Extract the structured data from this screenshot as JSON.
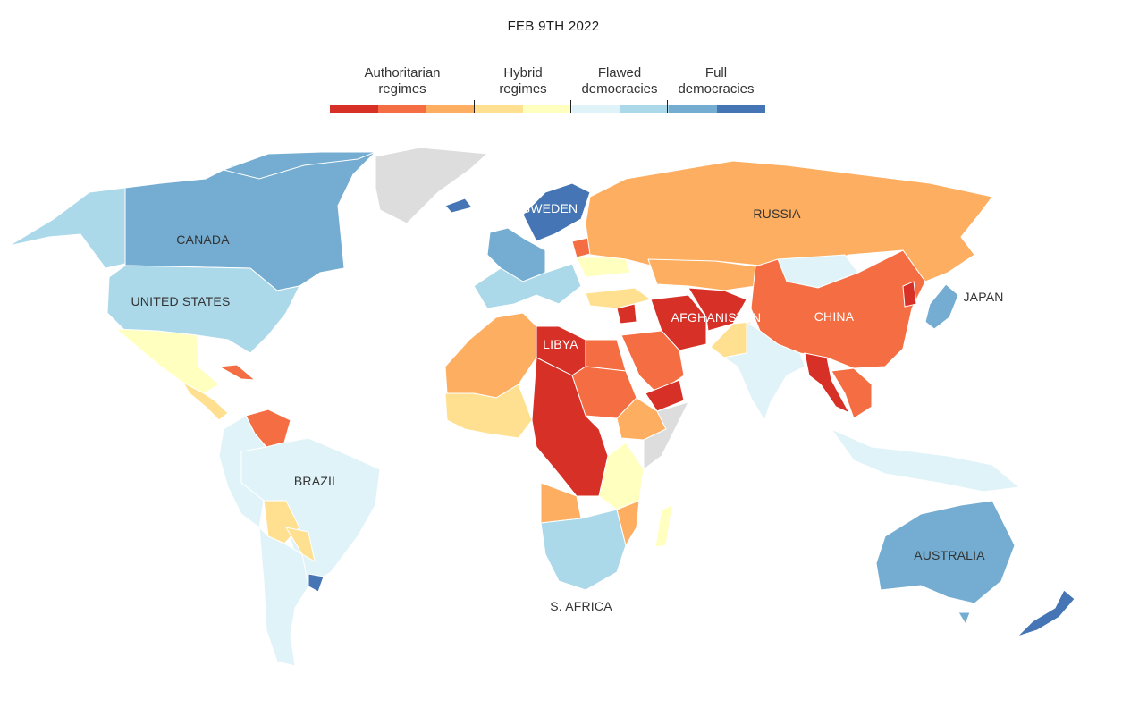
{
  "date": "FEB 9TH 2022",
  "legend": {
    "categories": [
      {
        "label_line1": "Authoritarian",
        "label_line2": "regimes"
      },
      {
        "label_line1": "Hybrid",
        "label_line2": "regimes"
      },
      {
        "label_line1": "Flawed",
        "label_line2": "democracies"
      },
      {
        "label_line1": "Full",
        "label_line2": "democracies"
      }
    ],
    "colors": [
      "#d73027",
      "#f46d43",
      "#fdae61",
      "#fee090",
      "#ffffbf",
      "#e0f3f8",
      "#abd9e9",
      "#74add1",
      "#4575b4"
    ]
  },
  "country_labels": {
    "canada": "CANADA",
    "united_states": "UNITED STATES",
    "brazil": "BRAZIL",
    "sweden": "SWEDEN",
    "russia": "RUSSIA",
    "libya": "LIBYA",
    "afghanistan": "AFGHANISTAN",
    "china": "CHINA",
    "japan": "JAPAN",
    "australia": "AUSTRALIA",
    "south_africa": "S. AFRICA"
  },
  "no_data_color": "#dddddd"
}
